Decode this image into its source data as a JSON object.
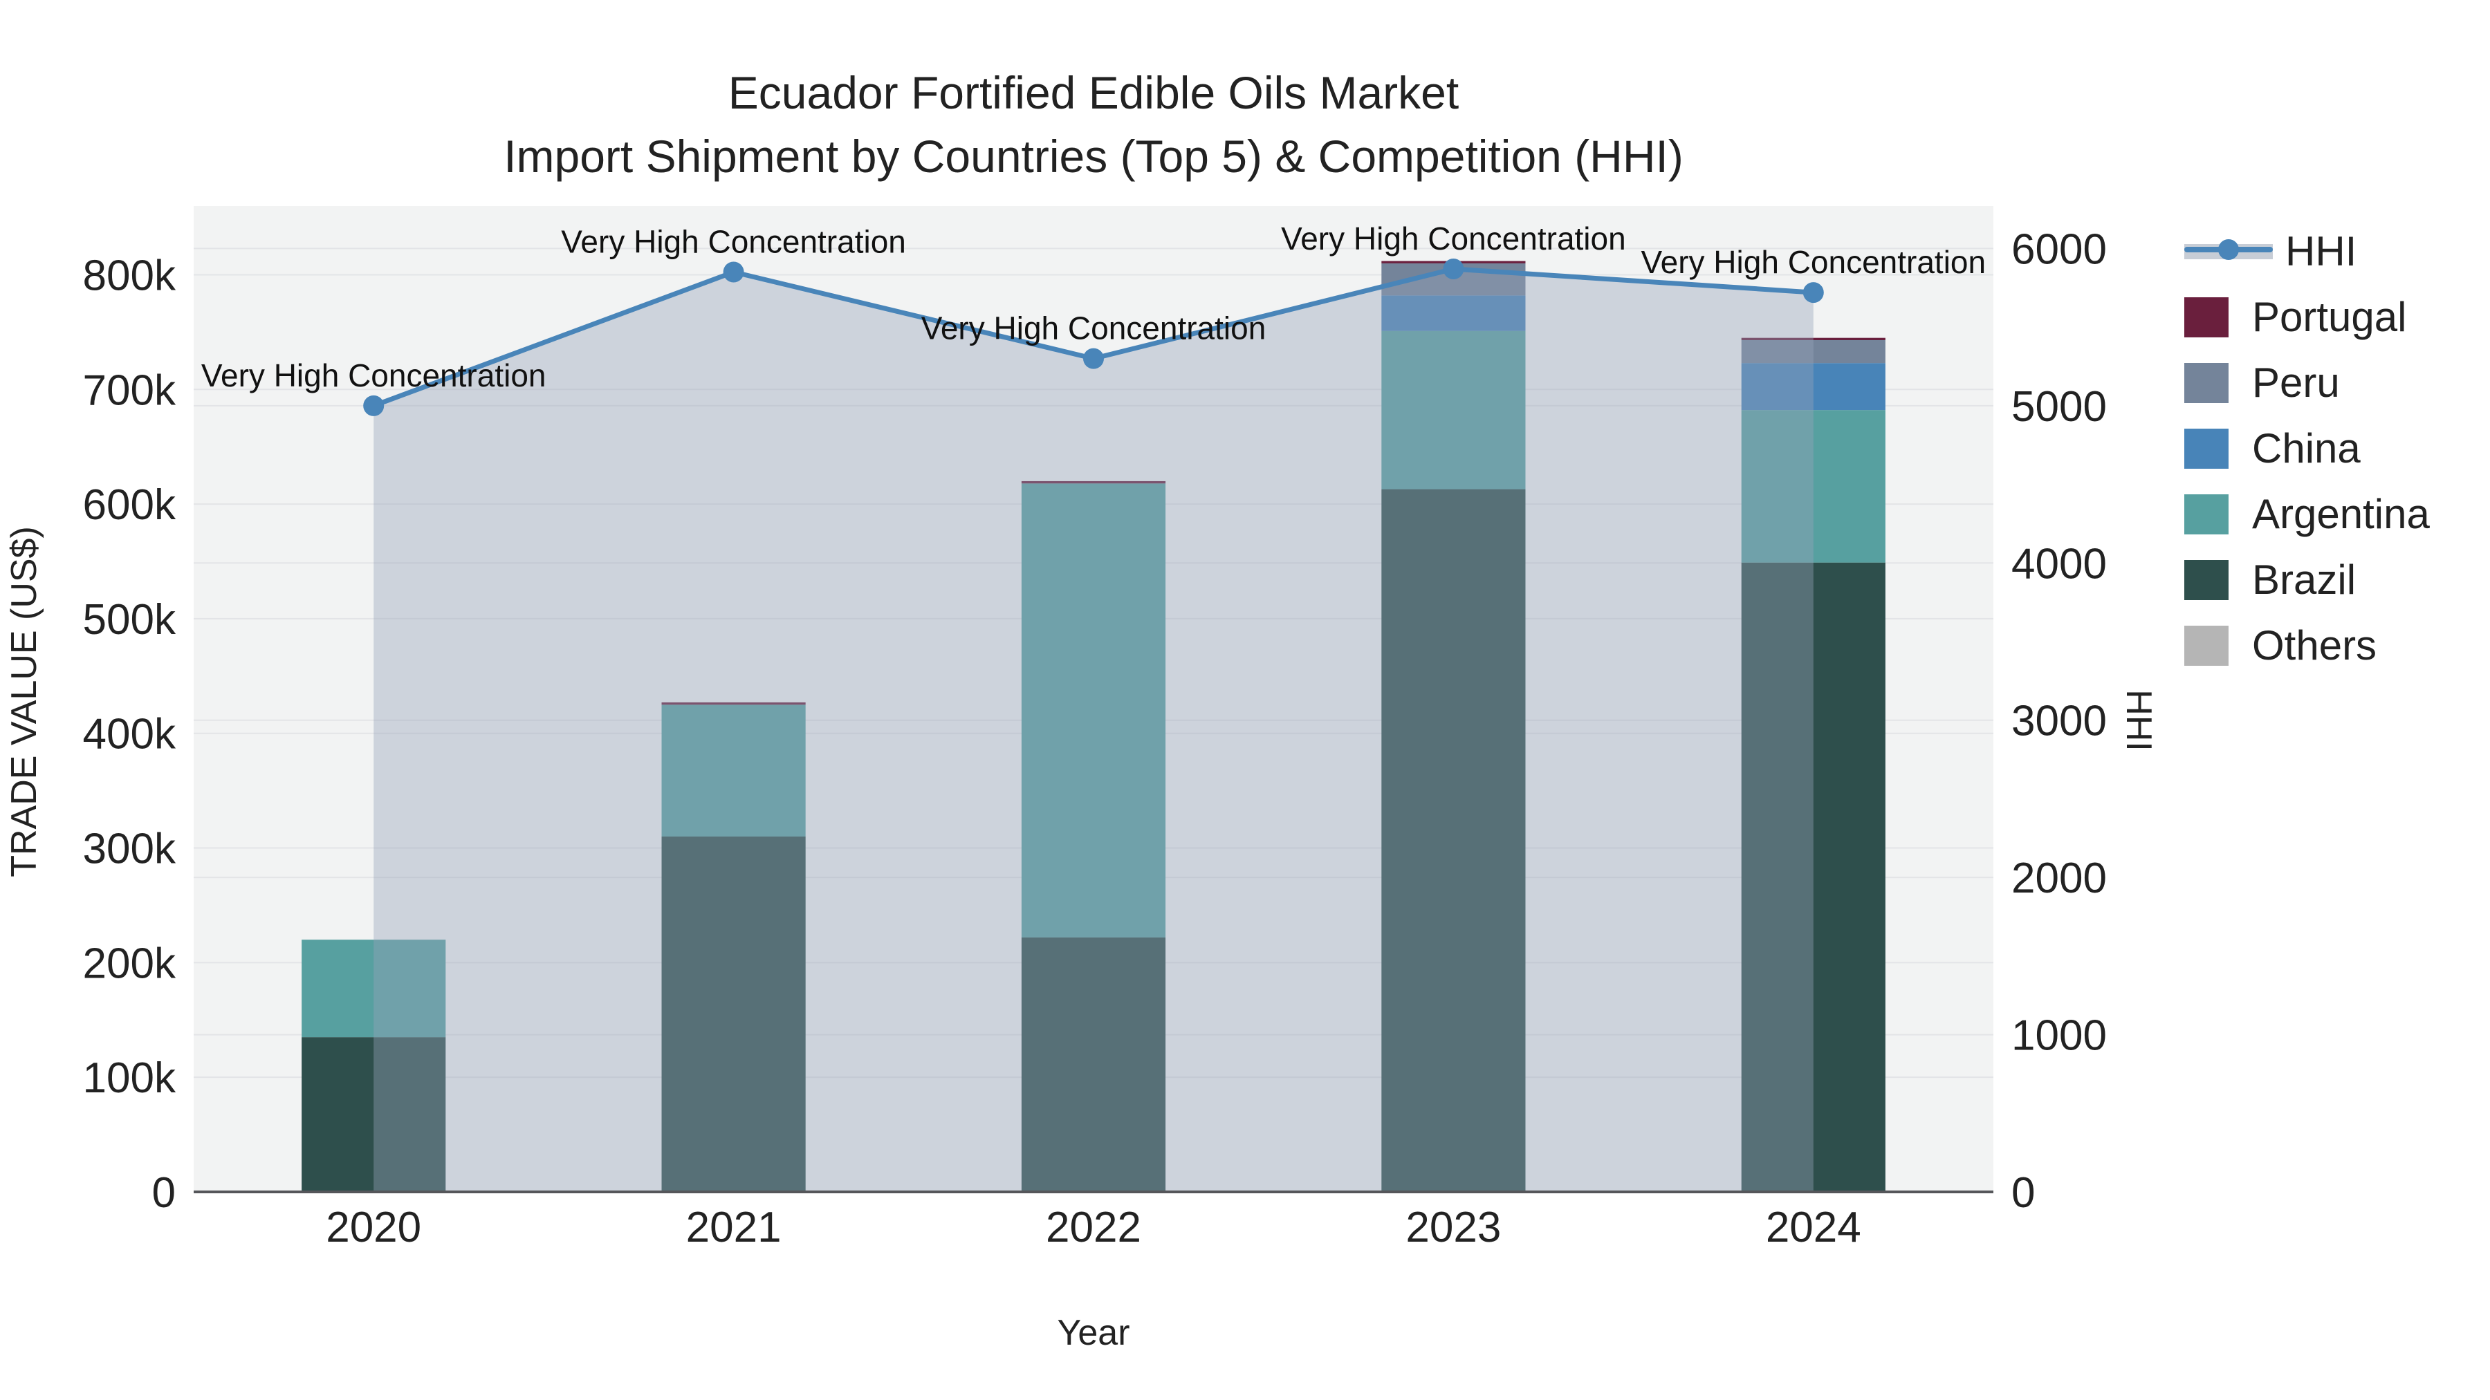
{
  "title": {
    "line1": "Ecuador Fortified Edible Oils Market",
    "line2": "Import Shipment by Countries (Top 5) & Competition (HHI)"
  },
  "axes": {
    "left_title": "TRADE VALUE (US$)",
    "right_title": "HHI",
    "x_title": "Year",
    "left_ticks": [
      {
        "v": 0,
        "label": "0"
      },
      {
        "v": 100000,
        "label": "100k"
      },
      {
        "v": 200000,
        "label": "200k"
      },
      {
        "v": 300000,
        "label": "300k"
      },
      {
        "v": 400000,
        "label": "400k"
      },
      {
        "v": 500000,
        "label": "500k"
      },
      {
        "v": 600000,
        "label": "600k"
      },
      {
        "v": 700000,
        "label": "700k"
      },
      {
        "v": 800000,
        "label": "800k"
      }
    ],
    "right_ticks": [
      {
        "v": 0,
        "label": "0"
      },
      {
        "v": 1000,
        "label": "1000"
      },
      {
        "v": 2000,
        "label": "2000"
      },
      {
        "v": 3000,
        "label": "3000"
      },
      {
        "v": 4000,
        "label": "4000"
      },
      {
        "v": 5000,
        "label": "5000"
      },
      {
        "v": 6000,
        "label": "6000"
      }
    ]
  },
  "chart_data": {
    "type": "bar",
    "stacked": true,
    "title": "Ecuador Fortified Edible Oils Market — Import Shipment by Countries (Top 5) & Competition (HHI)",
    "xlabel": "Year",
    "ylabel": "TRADE VALUE (US$)",
    "ylabel_right": "HHI",
    "categories": [
      "2020",
      "2021",
      "2022",
      "2023",
      "2024"
    ],
    "series": [
      {
        "name": "Brazil",
        "color": "#2E4F4C",
        "values": [
          135000,
          310000,
          222000,
          613000,
          549000
        ]
      },
      {
        "name": "Argentina",
        "color": "#57A0A0",
        "values": [
          85000,
          115000,
          396000,
          138000,
          133000
        ]
      },
      {
        "name": "China",
        "color": "#4884B8",
        "values": [
          0,
          0,
          0,
          31000,
          41000
        ]
      },
      {
        "name": "Peru",
        "color": "#74849A",
        "values": [
          0,
          0,
          0,
          28000,
          20000
        ]
      },
      {
        "name": "Portugal",
        "color": "#6A1F3D",
        "values": [
          0,
          2000,
          2000,
          2000,
          2000
        ]
      },
      {
        "name": "Others",
        "color": "#B5B5B5",
        "values": [
          0,
          0,
          0,
          0,
          0
        ]
      }
    ],
    "hhi_line": {
      "name": "HHI",
      "color": "#4985B9",
      "area_fill": "rgba(150,162,184,0.40)",
      "values": [
        5000,
        5850,
        5300,
        5870,
        5720
      ]
    },
    "annotations": {
      "text": "Very High Concentration",
      "per_point": [
        "Very High Concentration",
        "Very High Concentration",
        "Very High Concentration",
        "Very High Concentration",
        "Very High Concentration"
      ]
    },
    "ylim_left": [
      0,
      860000
    ],
    "ylim_right": [
      0,
      6270
    ],
    "grid": true,
    "legend_position": "top-right",
    "legend_order": [
      "HHI",
      "Portugal",
      "Peru",
      "China",
      "Argentina",
      "Brazil",
      "Others"
    ]
  },
  "colors": {
    "page_bg": "#FFFFFF",
    "plot_bg": "#F2F3F3",
    "grid": "#E3E4E7",
    "axis_line": "#55565A",
    "text": "#222222",
    "annotation_text": "#111111"
  }
}
